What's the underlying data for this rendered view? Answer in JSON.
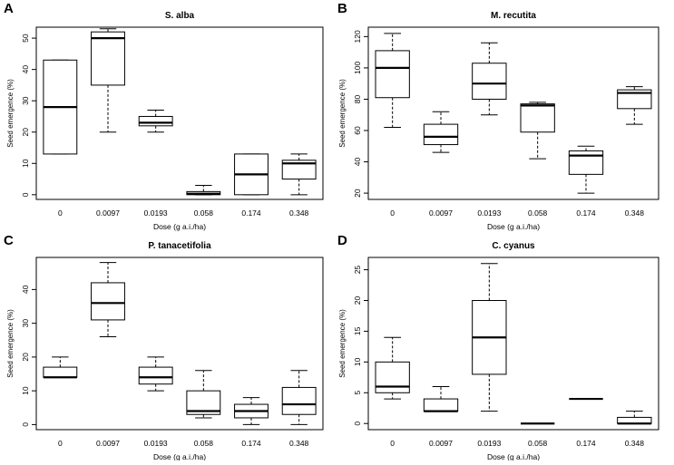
{
  "chart_data": [
    {
      "panel_letter": "A",
      "type": "box",
      "title": "S. alba",
      "xlabel": "Dose (g a.i./ha)",
      "ylabel": "Seed emergence (%)",
      "categories": [
        "0",
        "0.0097",
        "0.0193",
        "0.058",
        "0.174",
        "0.348"
      ],
      "ylim": [
        -1.5,
        53.5
      ],
      "yticks": [
        0,
        10,
        20,
        30,
        40,
        50
      ],
      "boxes": [
        {
          "min": 13,
          "q1": 13,
          "median": 28,
          "q3": 43,
          "max": 43
        },
        {
          "min": 20,
          "q1": 35,
          "median": 50,
          "q3": 52,
          "max": 53
        },
        {
          "min": 20,
          "q1": 22,
          "median": 23,
          "q3": 25,
          "max": 27
        },
        {
          "min": 0,
          "q1": 0,
          "median": 0.3,
          "q3": 1,
          "max": 3
        },
        {
          "min": 0,
          "q1": 0,
          "median": 6.5,
          "q3": 13,
          "max": 13
        },
        {
          "min": 0,
          "q1": 5,
          "median": 10,
          "q3": 11,
          "max": 13
        }
      ]
    },
    {
      "panel_letter": "B",
      "type": "box",
      "title": "M. recutita",
      "xlabel": "Dose (g a.i./ha)",
      "ylabel": "Seed emergence (%)",
      "categories": [
        "0",
        "0.0097",
        "0.0193",
        "0.058",
        "0.174",
        "0.348"
      ],
      "ylim": [
        16,
        126
      ],
      "yticks": [
        20,
        40,
        60,
        80,
        100,
        120
      ],
      "boxes": [
        {
          "min": 62,
          "q1": 81,
          "median": 100,
          "q3": 111,
          "max": 122
        },
        {
          "min": 46,
          "q1": 51,
          "median": 56,
          "q3": 64,
          "max": 72
        },
        {
          "min": 70,
          "q1": 80,
          "median": 90,
          "q3": 103,
          "max": 116
        },
        {
          "min": 42,
          "q1": 59,
          "median": 76,
          "q3": 77,
          "max": 78
        },
        {
          "min": 20,
          "q1": 32,
          "median": 44,
          "q3": 47,
          "max": 50
        },
        {
          "min": 64,
          "q1": 74,
          "median": 84,
          "q3": 86,
          "max": 88
        }
      ]
    },
    {
      "panel_letter": "C",
      "type": "box",
      "title": "P. tanacetifolia",
      "xlabel": "Dose (g a.i./ha)",
      "ylabel": "Seed emergence (%)",
      "categories": [
        "0",
        "0.0097",
        "0.0193",
        "0.058",
        "0.174",
        "0.348"
      ],
      "ylim": [
        -1.5,
        49.5
      ],
      "yticks": [
        0,
        10,
        20,
        30,
        40
      ],
      "boxes": [
        {
          "min": 14,
          "q1": 14,
          "median": 14,
          "q3": 17,
          "max": 20
        },
        {
          "min": 26,
          "q1": 31,
          "median": 36,
          "q3": 42,
          "max": 48
        },
        {
          "min": 10,
          "q1": 12,
          "median": 14,
          "q3": 17,
          "max": 20
        },
        {
          "min": 2,
          "q1": 3,
          "median": 4,
          "q3": 10,
          "max": 16
        },
        {
          "min": 0,
          "q1": 2,
          "median": 4,
          "q3": 6,
          "max": 8
        },
        {
          "min": 0,
          "q1": 3,
          "median": 6,
          "q3": 11,
          "max": 16
        }
      ]
    },
    {
      "panel_letter": "D",
      "type": "box",
      "title": "C. cyanus",
      "xlabel": "Dose (g a.i./ha)",
      "ylabel": "Seed emergence (%)",
      "categories": [
        "0",
        "0.0097",
        "0.0193",
        "0.058",
        "0.174",
        "0.348"
      ],
      "ylim": [
        -1,
        27
      ],
      "yticks": [
        0,
        5,
        10,
        15,
        20,
        25
      ],
      "boxes": [
        {
          "min": 4,
          "q1": 5,
          "median": 6,
          "q3": 10,
          "max": 14
        },
        {
          "min": 2,
          "q1": 2,
          "median": 2,
          "q3": 4,
          "max": 6
        },
        {
          "min": 2,
          "q1": 8,
          "median": 14,
          "q3": 20,
          "max": 26
        },
        {
          "min": 0,
          "q1": 0,
          "median": 0,
          "q3": 0,
          "max": 0
        },
        {
          "min": 4,
          "q1": 4,
          "median": 4,
          "q3": 4,
          "max": 4
        },
        {
          "min": 0,
          "q1": 0,
          "median": 0,
          "q3": 1,
          "max": 2
        }
      ]
    }
  ]
}
